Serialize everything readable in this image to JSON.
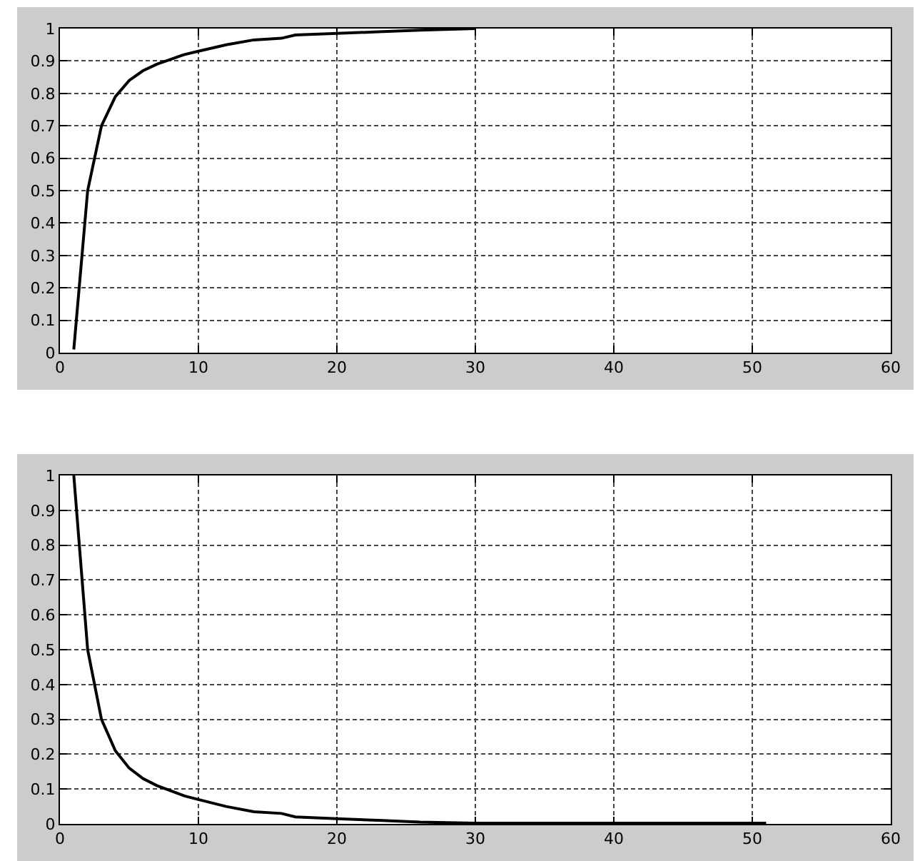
{
  "chart_data": [
    {
      "type": "line",
      "x": [
        1,
        2,
        3,
        4,
        5,
        6,
        7,
        8,
        9,
        10,
        12,
        14,
        16,
        17,
        20,
        23,
        26,
        30
      ],
      "series": [
        {
          "color": "#000000",
          "values": [
            0.01,
            0.5,
            0.7,
            0.79,
            0.84,
            0.87,
            0.89,
            0.905,
            0.92,
            0.93,
            0.95,
            0.965,
            0.97,
            0.98,
            0.985,
            0.99,
            0.995,
            1
          ]
        }
      ],
      "xlim": [
        0,
        60
      ],
      "xticks": [
        0,
        10,
        20,
        30,
        40,
        50,
        60
      ],
      "ylim": [
        0,
        1
      ],
      "yticks": [
        0,
        0.1,
        0.2,
        0.3,
        0.4,
        0.5,
        0.6,
        0.7,
        0.8,
        0.9,
        1
      ],
      "grid": true,
      "line_style": "solid"
    },
    {
      "type": "line",
      "x": [
        1,
        2,
        3,
        4,
        5,
        6,
        7,
        8,
        9,
        10,
        12,
        14,
        16,
        17,
        20,
        23,
        26,
        30,
        51
      ],
      "series": [
        {
          "color": "#000000",
          "values": [
            1,
            0.5,
            0.3,
            0.21,
            0.16,
            0.13,
            0.11,
            0.095,
            0.08,
            0.07,
            0.05,
            0.035,
            0.03,
            0.02,
            0.015,
            0.01,
            0.005,
            0.002,
            0.002
          ]
        }
      ],
      "xlim": [
        0,
        60
      ],
      "xticks": [
        0,
        10,
        20,
        30,
        40,
        50,
        60
      ],
      "ylim": [
        0,
        1
      ],
      "yticks": [
        0,
        0.1,
        0.2,
        0.3,
        0.4,
        0.5,
        0.6,
        0.7,
        0.8,
        0.9,
        1
      ],
      "grid": true,
      "line_style": "solid"
    }
  ]
}
